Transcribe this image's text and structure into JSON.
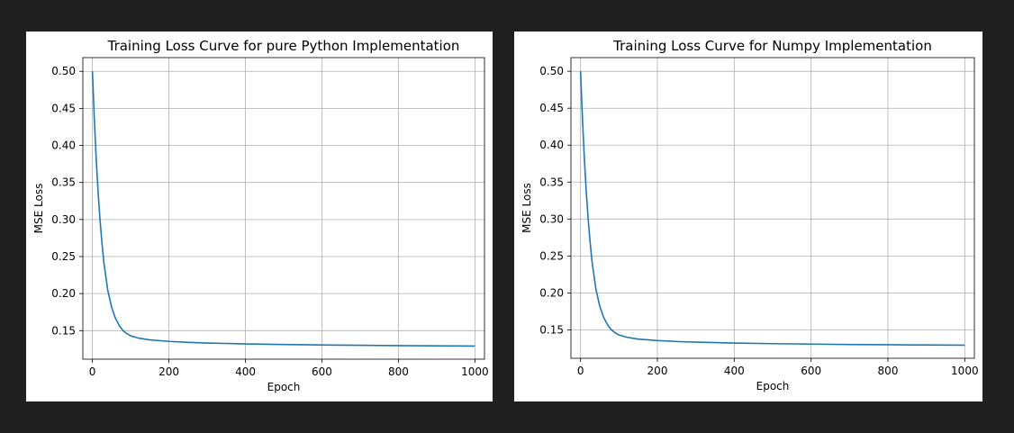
{
  "chart_data": [
    {
      "type": "line",
      "title": "Training Loss Curve for pure Python Implementation",
      "xlabel": "Epoch",
      "ylabel": "MSE Loss",
      "xlim": [
        -25,
        1025
      ],
      "ylim": [
        0.1115,
        0.5185
      ],
      "xticks": [
        0,
        200,
        400,
        600,
        800,
        1000
      ],
      "yticks": [
        0.15,
        0.2,
        0.25,
        0.3,
        0.35,
        0.4,
        0.45,
        0.5
      ],
      "xtick_labels": [
        "0",
        "200",
        "400",
        "600",
        "800",
        "1000"
      ],
      "ytick_labels": [
        "0.15",
        "0.20",
        "0.25",
        "0.30",
        "0.35",
        "0.40",
        "0.45",
        "0.50"
      ],
      "grid": true,
      "line_color": "#1f77b4",
      "series": [
        {
          "x": [
            0,
            5,
            10,
            15,
            20,
            25,
            30,
            40,
            50,
            60,
            70,
            80,
            90,
            100,
            120,
            150,
            200,
            250,
            300,
            400,
            500,
            600,
            700,
            800,
            900,
            1000
          ],
          "values": [
            0.5,
            0.436,
            0.381,
            0.336,
            0.299,
            0.268,
            0.242,
            0.205,
            0.182,
            0.167,
            0.157,
            0.15,
            0.146,
            0.143,
            0.14,
            0.1375,
            0.1355,
            0.1342,
            0.1333,
            0.1321,
            0.1313,
            0.1307,
            0.1302,
            0.1298,
            0.1295,
            0.1292
          ]
        }
      ]
    },
    {
      "type": "line",
      "title": "Training Loss Curve for Numpy Implementation",
      "xlabel": "Epoch",
      "ylabel": "MSE Loss",
      "xlim": [
        -25,
        1025
      ],
      "ylim": [
        0.1115,
        0.5185
      ],
      "xticks": [
        0,
        200,
        400,
        600,
        800,
        1000
      ],
      "yticks": [
        0.15,
        0.2,
        0.25,
        0.3,
        0.35,
        0.4,
        0.45,
        0.5
      ],
      "xtick_labels": [
        "0",
        "200",
        "400",
        "600",
        "800",
        "1000"
      ],
      "ytick_labels": [
        "0.15",
        "0.20",
        "0.25",
        "0.30",
        "0.35",
        "0.40",
        "0.45",
        "0.50"
      ],
      "grid": true,
      "line_color": "#1f77b4",
      "series": [
        {
          "x": [
            0,
            5,
            10,
            15,
            20,
            25,
            30,
            40,
            50,
            60,
            70,
            80,
            90,
            100,
            120,
            150,
            200,
            250,
            300,
            400,
            500,
            600,
            700,
            800,
            900,
            1000
          ],
          "values": [
            0.5,
            0.436,
            0.381,
            0.336,
            0.299,
            0.268,
            0.242,
            0.205,
            0.182,
            0.167,
            0.157,
            0.15,
            0.146,
            0.143,
            0.14,
            0.1375,
            0.1355,
            0.1342,
            0.1333,
            0.1321,
            0.1313,
            0.1307,
            0.1302,
            0.1298,
            0.1295,
            0.1292
          ]
        }
      ]
    }
  ]
}
